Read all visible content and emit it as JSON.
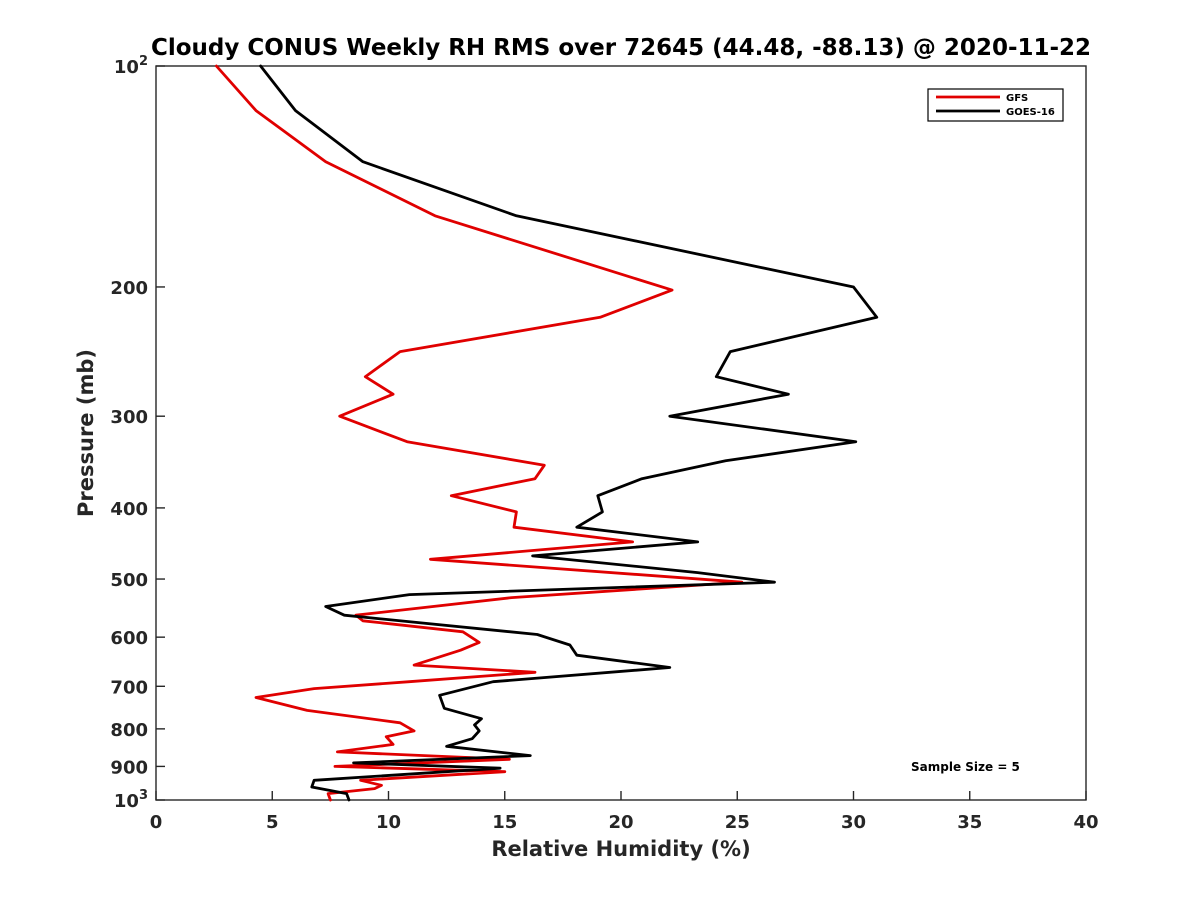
{
  "chart_data": {
    "type": "line",
    "title": "Cloudy CONUS Weekly RH RMS over 72645 (44.48, -88.13) @ 2020-11-22",
    "xlabel": "Relative Humidity (%)",
    "ylabel": "Pressure (mb)",
    "xlim": [
      0,
      40
    ],
    "ylim": [
      100,
      1000
    ],
    "yscale": "log",
    "y_reversed": true,
    "grid": false,
    "legend_position": "top-right",
    "x_ticks": [
      "0",
      "5",
      "10",
      "15",
      "20",
      "25",
      "30",
      "35",
      "40"
    ],
    "y_ticks": [
      {
        "value": 100,
        "base": "10",
        "exp": "2"
      },
      {
        "value": 200,
        "label": "200"
      },
      {
        "value": 300,
        "label": "300"
      },
      {
        "value": 400,
        "label": "400"
      },
      {
        "value": 500,
        "label": "500"
      },
      {
        "value": 600,
        "label": "600"
      },
      {
        "value": 700,
        "label": "700"
      },
      {
        "value": 800,
        "label": "800"
      },
      {
        "value": 900,
        "label": "900"
      },
      {
        "value": 1000,
        "base": "10",
        "exp": "3"
      }
    ],
    "annotation": "Sample Size = 5",
    "series": [
      {
        "name": "GFS",
        "color": "#e00000",
        "points": [
          [
            2.6,
            100
          ],
          [
            4.3,
            115
          ],
          [
            7.3,
            135
          ],
          [
            12.0,
            160
          ],
          [
            22.2,
            202
          ],
          [
            19.1,
            220
          ],
          [
            10.5,
            245
          ],
          [
            9.0,
            265
          ],
          [
            10.2,
            280
          ],
          [
            7.9,
            300
          ],
          [
            10.8,
            325
          ],
          [
            16.7,
            350
          ],
          [
            16.3,
            365
          ],
          [
            12.7,
            385
          ],
          [
            15.5,
            405
          ],
          [
            15.4,
            425
          ],
          [
            20.5,
            445
          ],
          [
            11.8,
            470
          ],
          [
            25.2,
            505
          ],
          [
            15.3,
            530
          ],
          [
            8.6,
            560
          ],
          [
            8.9,
            570
          ],
          [
            13.2,
            590
          ],
          [
            13.9,
            610
          ],
          [
            13.1,
            625
          ],
          [
            11.1,
            655
          ],
          [
            16.3,
            670
          ],
          [
            10.9,
            690
          ],
          [
            6.8,
            705
          ],
          [
            4.3,
            725
          ],
          [
            6.5,
            755
          ],
          [
            10.5,
            785
          ],
          [
            11.1,
            805
          ],
          [
            9.9,
            820
          ],
          [
            10.2,
            840
          ],
          [
            7.8,
            860
          ],
          [
            15.2,
            880
          ],
          [
            7.7,
            900
          ],
          [
            15.0,
            915
          ],
          [
            8.8,
            940
          ],
          [
            9.7,
            955
          ],
          [
            9.4,
            965
          ],
          [
            7.4,
            980
          ],
          [
            7.5,
            1000
          ]
        ]
      },
      {
        "name": "GOES-16",
        "color": "#000000",
        "points": [
          [
            4.5,
            100
          ],
          [
            6.0,
            115
          ],
          [
            8.9,
            135
          ],
          [
            15.5,
            160
          ],
          [
            30.0,
            200
          ],
          [
            31.0,
            220
          ],
          [
            24.7,
            245
          ],
          [
            24.1,
            265
          ],
          [
            27.2,
            280
          ],
          [
            22.1,
            300
          ],
          [
            30.1,
            325
          ],
          [
            24.5,
            345
          ],
          [
            20.9,
            365
          ],
          [
            19.0,
            385
          ],
          [
            19.2,
            405
          ],
          [
            18.1,
            425
          ],
          [
            23.3,
            445
          ],
          [
            16.2,
            465
          ],
          [
            23.3,
            490
          ],
          [
            26.6,
            505
          ],
          [
            10.9,
            525
          ],
          [
            7.3,
            545
          ],
          [
            8.1,
            560
          ],
          [
            16.4,
            595
          ],
          [
            17.8,
            615
          ],
          [
            18.1,
            635
          ],
          [
            22.1,
            660
          ],
          [
            14.5,
            690
          ],
          [
            12.2,
            720
          ],
          [
            12.4,
            750
          ],
          [
            14.0,
            775
          ],
          [
            13.7,
            790
          ],
          [
            13.9,
            805
          ],
          [
            13.6,
            825
          ],
          [
            12.5,
            845
          ],
          [
            16.1,
            870
          ],
          [
            8.5,
            890
          ],
          [
            14.8,
            905
          ],
          [
            6.8,
            940
          ],
          [
            6.7,
            960
          ],
          [
            8.2,
            980
          ],
          [
            8.3,
            1000
          ]
        ]
      }
    ]
  }
}
